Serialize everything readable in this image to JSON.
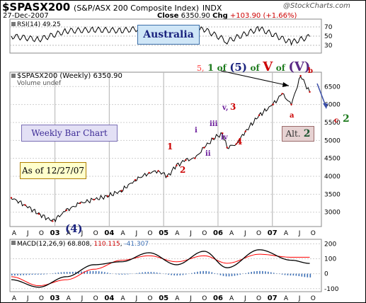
{
  "header": {
    "symbol": "$SPASX200",
    "name": "(S&P/ASX 200 Composite Index)",
    "exchange": "INDX",
    "date": "27-Dec-2007",
    "close_label": "Close",
    "close_value": "6350.90",
    "chg_label": "Chg",
    "chg_value": "+103.90 (+1.66%)",
    "watermark": "@StockCharts.com"
  },
  "rsi": {
    "label": "RSI(14) 49.25",
    "ticks": [
      "70",
      "50",
      "30"
    ]
  },
  "price": {
    "label": "$SPASX200 (Weekly) 6350.90",
    "volume_label": "Volume undef"
  },
  "boxes": {
    "australia": "Australia",
    "weekly": "Weekly Bar Chart",
    "asof": "As of 12/27/07",
    "alt_text": "Alt.",
    "alt_num": "2"
  },
  "wave_title": {
    "w5": "5,",
    "one": "1",
    "of1": "of",
    "paren5": "(5)",
    "of2": "of",
    "V": "V",
    "of3": "of",
    "parenV": "(V)"
  },
  "wave_labels": {
    "w1": "1",
    "w2": "2",
    "i": "i",
    "ii": "ii",
    "iii": "iii",
    "iv": "iv",
    "v": "v,",
    "w3": "3",
    "w4": "4",
    "a": "a",
    "b": "b",
    "c": "c",
    "alt2": "2",
    "w4big": "(4)"
  },
  "macd": {
    "label": "MACD(12,26,9)",
    "v1": "68.808",
    "v2": "110.115",
    "v3": "-41.307"
  },
  "colors": {
    "price": "#000000",
    "macd": "#000000",
    "signal": "#ff0000",
    "hist": "#3b6fb6",
    "red_label": "#cc0000",
    "green": "#1e7b1e"
  },
  "chart_data": [
    {
      "type": "line",
      "title": "$SPASX200 (Weekly) 6350.90",
      "x": [
        "2002-07",
        "2002-10",
        "2003-01",
        "2003-04",
        "2003-07",
        "2003-10",
        "2004-01",
        "2004-04",
        "2004-07",
        "2004-10",
        "2005-01",
        "2005-03",
        "2005-05",
        "2005-07",
        "2005-09",
        "2005-11",
        "2006-01",
        "2006-03",
        "2006-05",
        "2006-06",
        "2006-08",
        "2006-10",
        "2007-01",
        "2007-04",
        "2007-06",
        "2007-08",
        "2007-10",
        "2007-12"
      ],
      "y": [
        3400,
        3200,
        2950,
        2750,
        3050,
        3250,
        3350,
        3450,
        3600,
        3900,
        4100,
        4150,
        4000,
        4300,
        4450,
        4500,
        4800,
        5050,
        5200,
        4800,
        4900,
        5250,
        5700,
        6000,
        6300,
        6000,
        6800,
        6350
      ],
      "yticks": [
        3000,
        3500,
        4000,
        4500,
        5000,
        5500,
        6000,
        6500
      ],
      "ylim": [
        2600,
        6900
      ],
      "xticks": [
        "A",
        "J",
        "O",
        "03",
        "A",
        "J",
        "O",
        "04",
        "A",
        "J",
        "O",
        "05",
        "A",
        "J",
        "O",
        "06",
        "A",
        "J",
        "O",
        "07",
        "A",
        "J",
        "O"
      ]
    },
    {
      "type": "line",
      "title": "RSI(14) 49.25",
      "yticks": [
        30,
        50,
        70
      ],
      "ylim": [
        10,
        90
      ],
      "x": [
        "2002-07",
        "2003-01",
        "2003-07",
        "2004-01",
        "2004-07",
        "2005-01",
        "2005-07",
        "2006-01",
        "2006-06",
        "2007-01",
        "2007-08",
        "2007-12"
      ],
      "y": [
        50,
        42,
        62,
        65,
        63,
        70,
        58,
        66,
        38,
        68,
        35,
        49
      ]
    },
    {
      "type": "line",
      "title": "MACD(12,26,9)",
      "yticks": [
        -100,
        0,
        100,
        200
      ],
      "ylim": [
        -120,
        230
      ],
      "series": [
        {
          "name": "MACD(12,26,9)",
          "values": [
            -40,
            -90,
            -20,
            60,
            80,
            140,
            60,
            150,
            40,
            160,
            90,
            68.808
          ]
        },
        {
          "name": "110.115",
          "values": [
            -20,
            -80,
            -40,
            30,
            90,
            120,
            80,
            120,
            70,
            130,
            110,
            110.115
          ]
        }
      ],
      "x": [
        "2002-07",
        "2003-01",
        "2003-07",
        "2004-01",
        "2004-07",
        "2005-01",
        "2005-07",
        "2006-01",
        "2006-06",
        "2007-01",
        "2007-08",
        "2007-12"
      ]
    }
  ]
}
